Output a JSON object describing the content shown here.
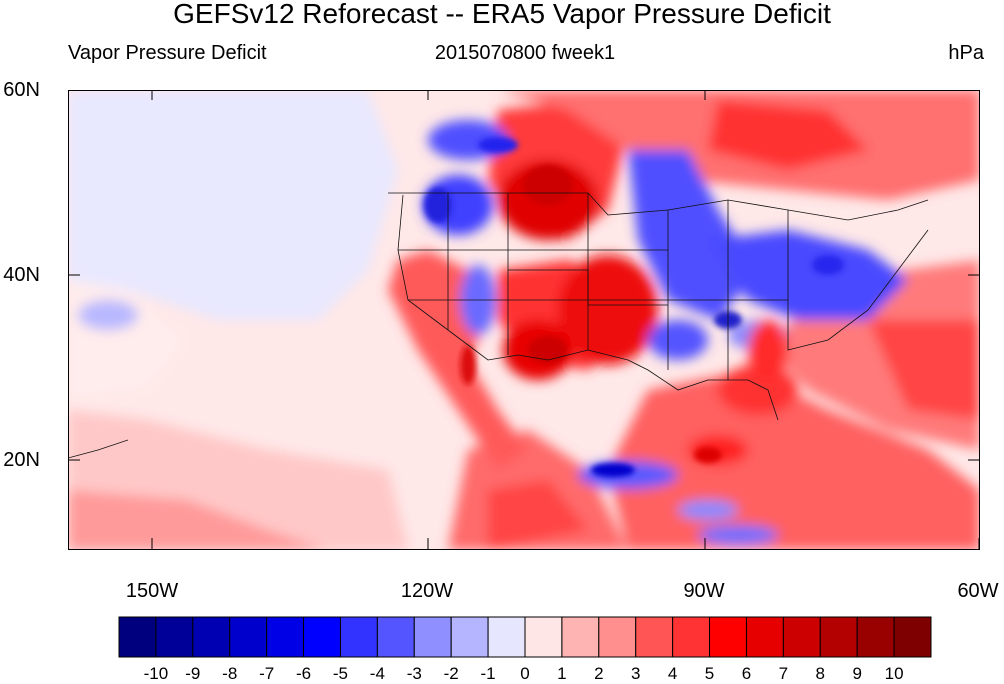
{
  "title": "GEFSv12 Reforecast -- ERA5 Vapor Pressure Deficit",
  "subtitle": {
    "left": "Vapor Pressure Deficit",
    "center": "2015070800 fweek1",
    "right": "hPa"
  },
  "map": {
    "region": "North America / Northeast Pacific",
    "lat_range": [
      10,
      60
    ],
    "lon_range": [
      -160,
      -60
    ],
    "lat_labels": [
      "60N",
      "40N",
      "20N"
    ],
    "lon_labels": [
      "150W",
      "120W",
      "90W",
      "60W"
    ],
    "features": [
      "coastlines",
      "US state boundaries",
      "country borders"
    ]
  },
  "colorbar": {
    "levels": [
      "-10",
      "-9",
      "-8",
      "-7",
      "-6",
      "-5",
      "-4",
      "-3",
      "-2",
      "-1",
      "0",
      "1",
      "2",
      "3",
      "4",
      "5",
      "6",
      "7",
      "8",
      "9",
      "10"
    ],
    "colors": [
      "#00007f",
      "#000099",
      "#0000b3",
      "#0000cc",
      "#0000e6",
      "#0000ff",
      "#3333ff",
      "#5555ff",
      "#8f8fff",
      "#b4b4ff",
      "#e6e6ff",
      "#ffe6e6",
      "#ffb4b4",
      "#ff8f8f",
      "#ff5555",
      "#ff3333",
      "#ff0000",
      "#e60000",
      "#cc0000",
      "#b30000",
      "#990000",
      "#7f0000"
    ],
    "units": "hPa"
  }
}
